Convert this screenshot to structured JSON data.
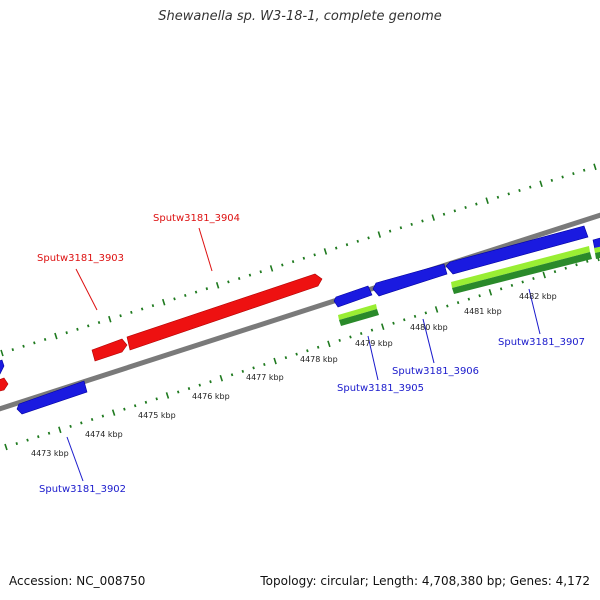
{
  "title": "Shewanella sp. W3-18-1, complete genome",
  "footer": {
    "accession": "Accession: NC_008750",
    "summary": "Topology: circular; Length: 4,708,380 bp; Genes: 4,172"
  },
  "colors": {
    "forward_gene": "#ee1111",
    "reverse_gene": "#1a1ae0",
    "rna_light": "#99ee33",
    "rna_dark": "#2a8a2a",
    "backbone": "#8a8a8a",
    "tick": "#1f7a1f",
    "forward_label": "#dd1111",
    "reverse_label": "#1a1acc",
    "scale_label": "#222222"
  },
  "scale_labels": [
    "4473 kbp",
    "4474 kbp",
    "4475 kbp",
    "4476 kbp",
    "4477 kbp",
    "4478 kbp",
    "4479 kbp",
    "4480 kbp",
    "4481 kbp",
    "4482 kbp"
  ],
  "gene_labels": [
    {
      "text": "Sputw3181_3903",
      "strand": "forward"
    },
    {
      "text": "Sputw3181_3904",
      "strand": "forward"
    },
    {
      "text": "Sputw3181_3902",
      "strand": "reverse"
    },
    {
      "text": "Sputw3181_3905",
      "strand": "reverse"
    },
    {
      "text": "Sputw3181_3906",
      "strand": "reverse"
    },
    {
      "text": "Sputw3181_3907",
      "strand": "reverse"
    }
  ]
}
